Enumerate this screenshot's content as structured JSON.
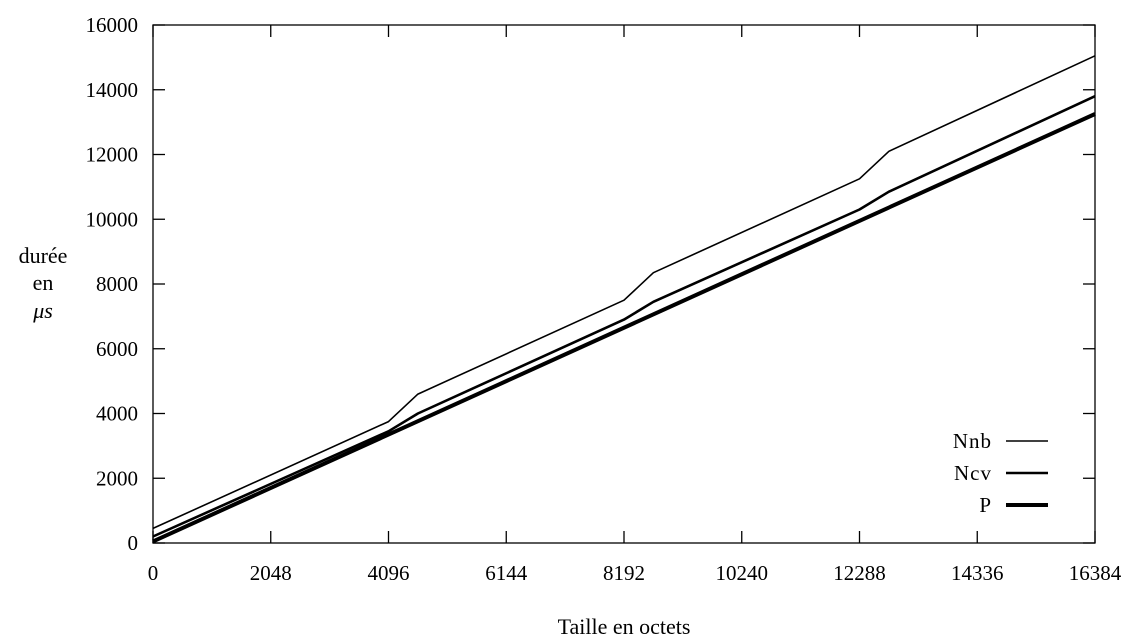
{
  "chart_data": {
    "type": "line",
    "title": "",
    "xlabel": "Taille en octets",
    "ylabel": [
      "durée",
      "en",
      "μs"
    ],
    "xlim": [
      0,
      16384
    ],
    "ylim": [
      0,
      16000
    ],
    "xticks": [
      0,
      2048,
      4096,
      6144,
      8192,
      10240,
      12288,
      14336,
      16384
    ],
    "yticks": [
      0,
      2000,
      4000,
      6000,
      8000,
      10000,
      12000,
      14000,
      16000
    ],
    "grid": false,
    "legend_position": "bottom-right",
    "series": [
      {
        "name": "Nnb",
        "x": [
          0,
          4096,
          4608,
          8192,
          8704,
          12288,
          12800,
          16384
        ],
        "y": [
          450,
          3750,
          4600,
          7500,
          8350,
          11250,
          12100,
          15050
        ]
      },
      {
        "name": "Ncv",
        "x": [
          0,
          4096,
          4608,
          8192,
          8704,
          12288,
          12800,
          16384
        ],
        "y": [
          200,
          3450,
          4000,
          6900,
          7450,
          10300,
          10850,
          13800
        ]
      },
      {
        "name": "P",
        "x": [
          0,
          16384
        ],
        "y": [
          50,
          13250
        ]
      }
    ]
  }
}
